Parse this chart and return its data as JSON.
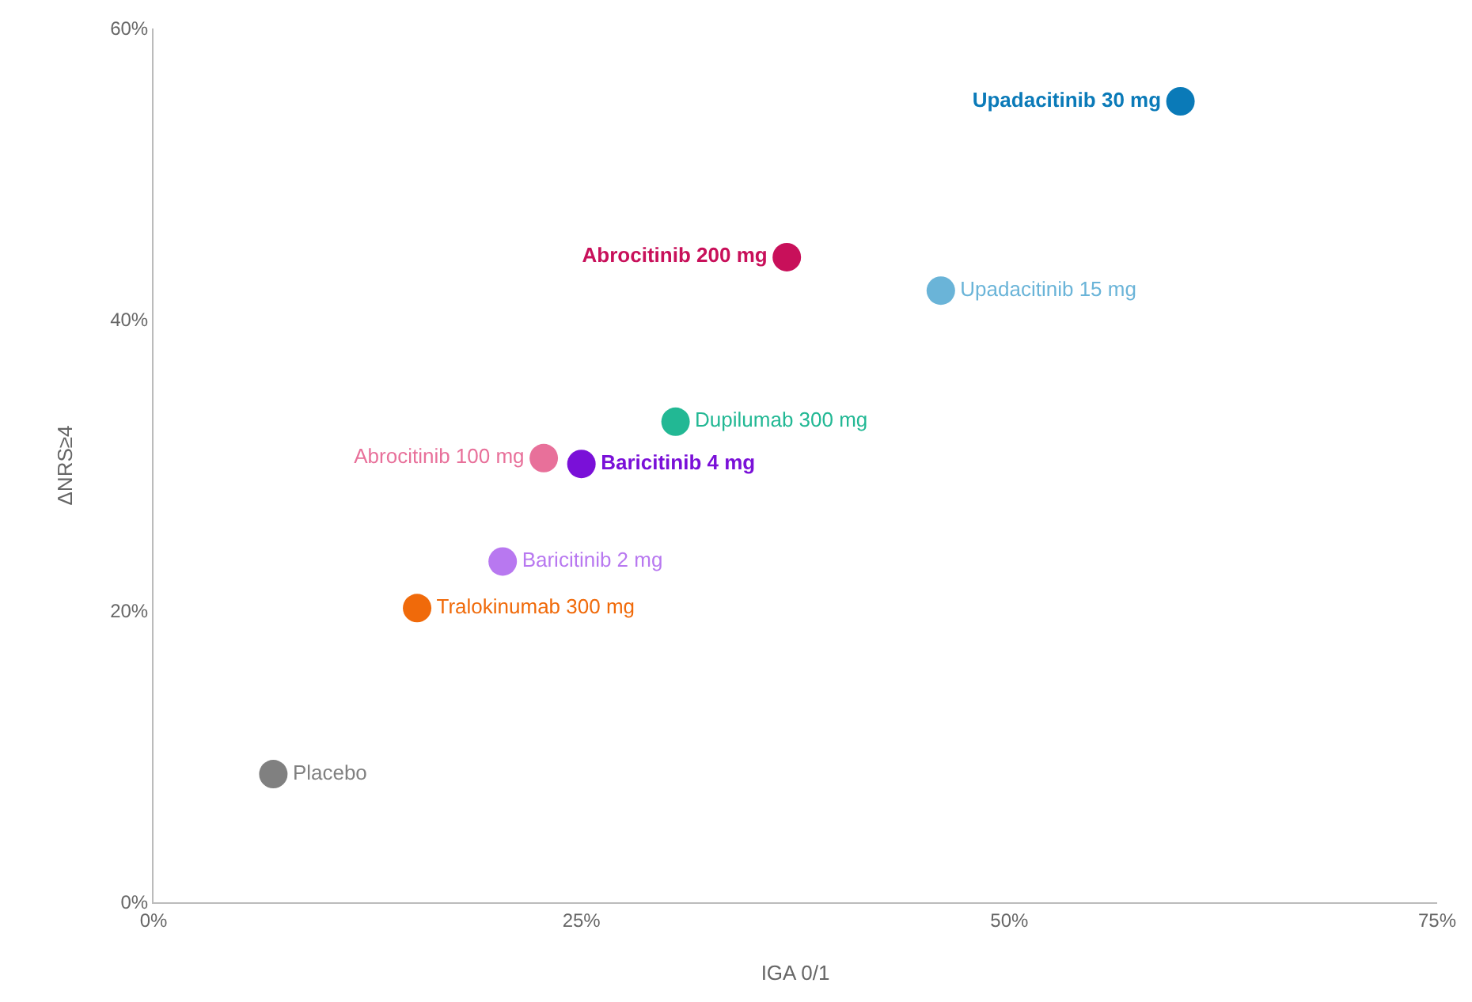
{
  "chart_data": {
    "type": "scatter",
    "xlabel": "IGA 0/1",
    "ylabel": "ΔNRS≥4",
    "marker": "circle",
    "grid": false,
    "legend": false,
    "xlim": [
      0,
      75
    ],
    "ylim": [
      0,
      60
    ],
    "xticks": [
      {
        "value": 0,
        "label": "0%"
      },
      {
        "value": 25,
        "label": "25%"
      },
      {
        "value": 50,
        "label": "50%"
      },
      {
        "value": 75,
        "label": "75%"
      }
    ],
    "yticks": [
      {
        "value": 0,
        "label": "0%"
      },
      {
        "value": 20,
        "label": "20%"
      },
      {
        "value": 40,
        "label": "40%"
      },
      {
        "value": 60,
        "label": "60%"
      }
    ],
    "series": [
      {
        "name": "Upadacitinib 30 mg",
        "color": "#0a7ab8",
        "x": [
          60
        ],
        "values": [
          55
        ]
      },
      {
        "name": "Abrocitinib 200 mg",
        "color": "#c8105a",
        "x": [
          37
        ],
        "values": [
          44.3
        ]
      },
      {
        "name": "Upadacitinib 15 mg",
        "color": "#6ab4d8",
        "x": [
          46
        ],
        "values": [
          42
        ]
      },
      {
        "name": "Dupilumab 300 mg",
        "color": "#22b894",
        "x": [
          30.5
        ],
        "values": [
          33
        ]
      },
      {
        "name": "Abrocitinib 100 mg",
        "color": "#e8709a",
        "x": [
          22.8
        ],
        "values": [
          30.5
        ]
      },
      {
        "name": "Baricitinib 4 mg",
        "color": "#7a10d8",
        "x": [
          25
        ],
        "values": [
          30.1
        ]
      },
      {
        "name": "Baricitinib 2 mg",
        "color": "#b878f0",
        "x": [
          20.4
        ],
        "values": [
          23.4
        ]
      },
      {
        "name": "Tralokinumab 300 mg",
        "color": "#f06a0a",
        "x": [
          15.4
        ],
        "values": [
          20.2
        ]
      },
      {
        "name": "Placebo",
        "color": "#808080",
        "x": [
          7
        ],
        "values": [
          8.8
        ]
      }
    ]
  }
}
